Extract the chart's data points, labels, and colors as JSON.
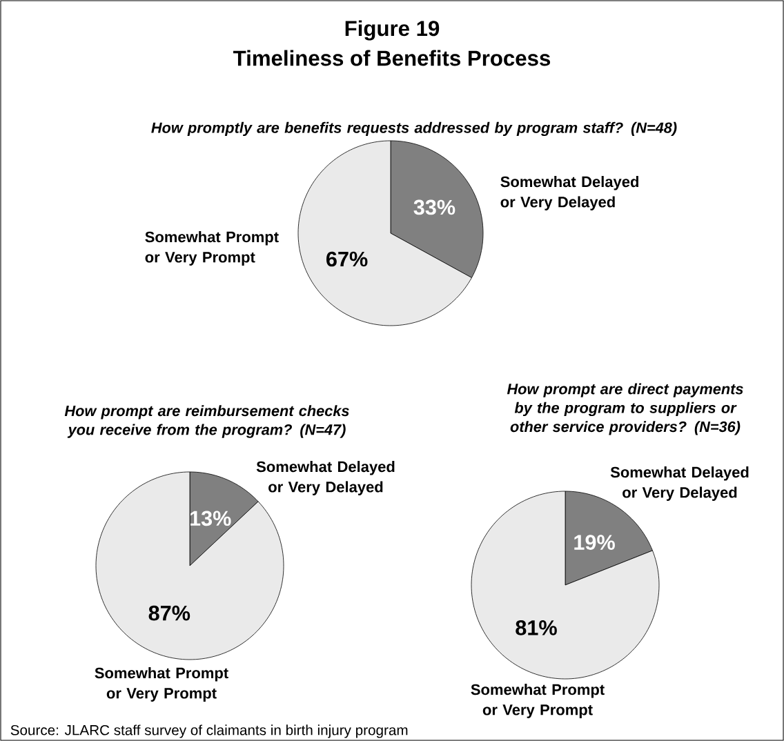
{
  "chart_data": [
    {
      "type": "other",
      "title": "Figure 19",
      "subtitle": "Timeliness of Benefits Process",
      "annotations": [
        "Source:  JLARC staff survey of claimants in birth injury program"
      ]
    },
    {
      "type": "pie",
      "title": "How promptly are benefits requests addressed by program staff? (N=48)",
      "categories": [
        "Somewhat Delayed or Very Delayed",
        "Somewhat Prompt or Very Prompt"
      ],
      "values": [
        33,
        67
      ],
      "value_labels": [
        "33%",
        "67%"
      ],
      "colors": [
        "#808080",
        "#eaeaea"
      ]
    },
    {
      "type": "pie",
      "title": "How prompt are reimbursement checks you receive from the program? (N=47)",
      "categories": [
        "Somewhat Delayed or Very Delayed",
        "Somewhat Prompt or Very Prompt"
      ],
      "values": [
        13,
        87
      ],
      "value_labels": [
        "13%",
        "87%"
      ],
      "colors": [
        "#808080",
        "#eaeaea"
      ]
    },
    {
      "type": "pie",
      "title": "How prompt are direct payments by the program to suppliers or other service providers? (N=36)",
      "categories": [
        "Somewhat Delayed or Very Delayed",
        "Somewhat Prompt or Very Prompt"
      ],
      "values": [
        19,
        81
      ],
      "value_labels": [
        "19%",
        "81%"
      ],
      "colors": [
        "#808080",
        "#eaeaea"
      ]
    }
  ]
}
